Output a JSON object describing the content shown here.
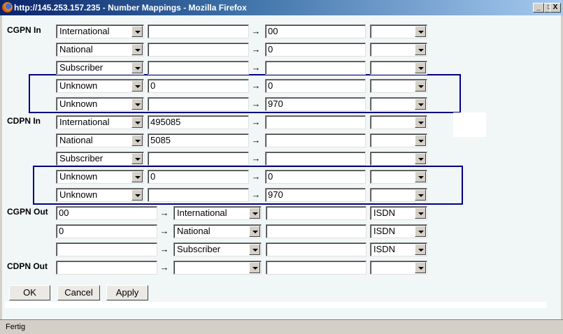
{
  "window": {
    "title": "http://145.253.157.235 - Number Mappings - Mozilla Firefox",
    "buttons": {
      "minimize": "_",
      "maximize": "□",
      "close": "X"
    }
  },
  "arrow": "→",
  "sections_in": [
    {
      "label": "CGPN In",
      "rows": [
        {
          "type": "International",
          "from": "",
          "to": "00",
          "opt": ""
        },
        {
          "type": "National",
          "from": "",
          "to": "0",
          "opt": ""
        },
        {
          "type": "Subscriber",
          "from": "",
          "to": "",
          "opt": ""
        },
        {
          "type": "Unknown",
          "from": "0",
          "to": "0",
          "opt": ""
        },
        {
          "type": "Unknown",
          "from": "",
          "to": "970",
          "opt": ""
        }
      ]
    },
    {
      "label": "CDPN In",
      "rows": [
        {
          "type": "International",
          "from": "495085",
          "to": "",
          "opt": ""
        },
        {
          "type": "National",
          "from": "5085",
          "to": "",
          "opt": ""
        },
        {
          "type": "Subscriber",
          "from": "",
          "to": "",
          "opt": ""
        },
        {
          "type": "Unknown",
          "from": "0",
          "to": "0",
          "opt": ""
        },
        {
          "type": "Unknown",
          "from": "",
          "to": "970",
          "opt": ""
        }
      ]
    }
  ],
  "sections_out": [
    {
      "label": "CGPN Out",
      "rows": [
        {
          "from": "00",
          "type": "International",
          "to": "",
          "opt": "ISDN"
        },
        {
          "from": "0",
          "type": "National",
          "to": "",
          "opt": "ISDN"
        },
        {
          "from": "",
          "type": "Subscriber",
          "to": "",
          "opt": "ISDN"
        }
      ]
    },
    {
      "label": "CDPN Out",
      "rows": [
        {
          "from": "",
          "type": "",
          "to": "",
          "opt": ""
        }
      ]
    }
  ],
  "buttons": {
    "ok": "OK",
    "cancel": "Cancel",
    "apply": "Apply"
  },
  "status": "Fertig",
  "colors": {
    "highlight": "#000080",
    "background": "#f1f7f7"
  }
}
